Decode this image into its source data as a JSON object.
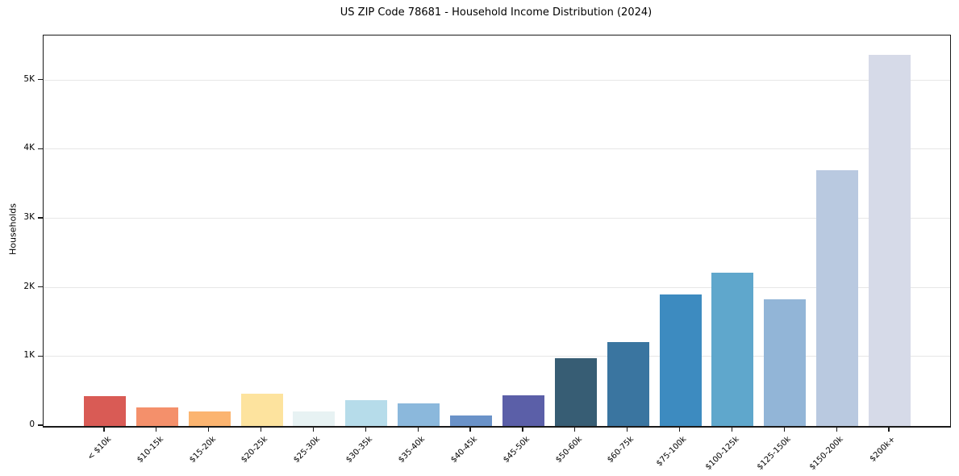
{
  "chart_data": {
    "type": "bar",
    "title": "US ZIP Code 78681 - Household Income Distribution (2024)",
    "xlabel": "",
    "ylabel": "Households",
    "categories": [
      "< $10k",
      "$10-15k",
      "$15-20k",
      "$20-25k",
      "$25-30k",
      "$30-35k",
      "$35-40k",
      "$40-45k",
      "$45-50k",
      "$50-60k",
      "$60-75k",
      "$75-100k",
      "$100-125k",
      "$125-150k",
      "$150-200k",
      "$200k+"
    ],
    "values": [
      430,
      265,
      205,
      470,
      215,
      370,
      325,
      150,
      445,
      975,
      1220,
      1900,
      2220,
      1830,
      3700,
      5370
    ],
    "bar_colors": [
      "#d95b55",
      "#f4906b",
      "#fbb470",
      "#fde39e",
      "#e7f2f3",
      "#b6dcea",
      "#8bb8dc",
      "#6a92c8",
      "#5b5fa8",
      "#375d74",
      "#3a75a0",
      "#3d8bc0",
      "#5fa7cc",
      "#92b5d7",
      "#b9c9e0",
      "#d6dae8"
    ],
    "ylim": [
      0,
      5650
    ],
    "yticks": [
      {
        "value": 0,
        "label": "0"
      },
      {
        "value": 1000,
        "label": "1K"
      },
      {
        "value": 2000,
        "label": "2K"
      },
      {
        "value": 3000,
        "label": "3K"
      },
      {
        "value": 4000,
        "label": "4K"
      },
      {
        "value": 5000,
        "label": "5K"
      }
    ],
    "grid": "horizontal gridlines at y ticks",
    "legend_position": "none"
  },
  "colors": {
    "background": "#ffffff",
    "axis": "#1a1a1a",
    "grid": "#e7e7e7",
    "text": "#000000"
  }
}
